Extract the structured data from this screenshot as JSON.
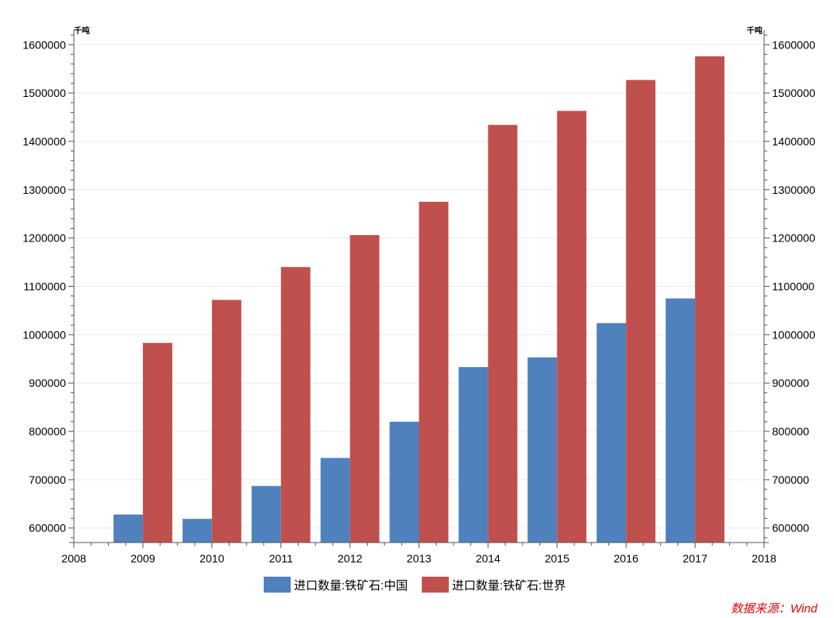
{
  "chart_data": {
    "type": "bar",
    "x_ticks": [
      "2008",
      "2009",
      "2010",
      "2011",
      "2012",
      "2013",
      "2014",
      "2015",
      "2016",
      "2017",
      "2018"
    ],
    "categories": [
      "2009",
      "2010",
      "2011",
      "2012",
      "2013",
      "2014",
      "2015",
      "2016",
      "2017"
    ],
    "series": [
      {
        "name": "进口数量:铁矿石:中国",
        "color": "#4f81bd",
        "values": [
          628000,
          619000,
          687000,
          745000,
          820000,
          933000,
          953000,
          1024000,
          1075000
        ]
      },
      {
        "name": "进口数量:铁矿石:世界",
        "color": "#c0504d",
        "values": [
          983000,
          1072000,
          1140000,
          1206000,
          1275000,
          1434000,
          1463000,
          1527000,
          1576000
        ]
      }
    ],
    "y_ticks": [
      600000,
      700000,
      800000,
      900000,
      1000000,
      1100000,
      1200000,
      1300000,
      1400000,
      1500000,
      1600000
    ],
    "ylim": [
      570000,
      1630000
    ],
    "y_unit_left": "千吨",
    "y_unit_right": "千吨",
    "legend_position": "bottom",
    "grid": true,
    "source": "数据来源：Wind",
    "source_color": "#e8000b"
  }
}
